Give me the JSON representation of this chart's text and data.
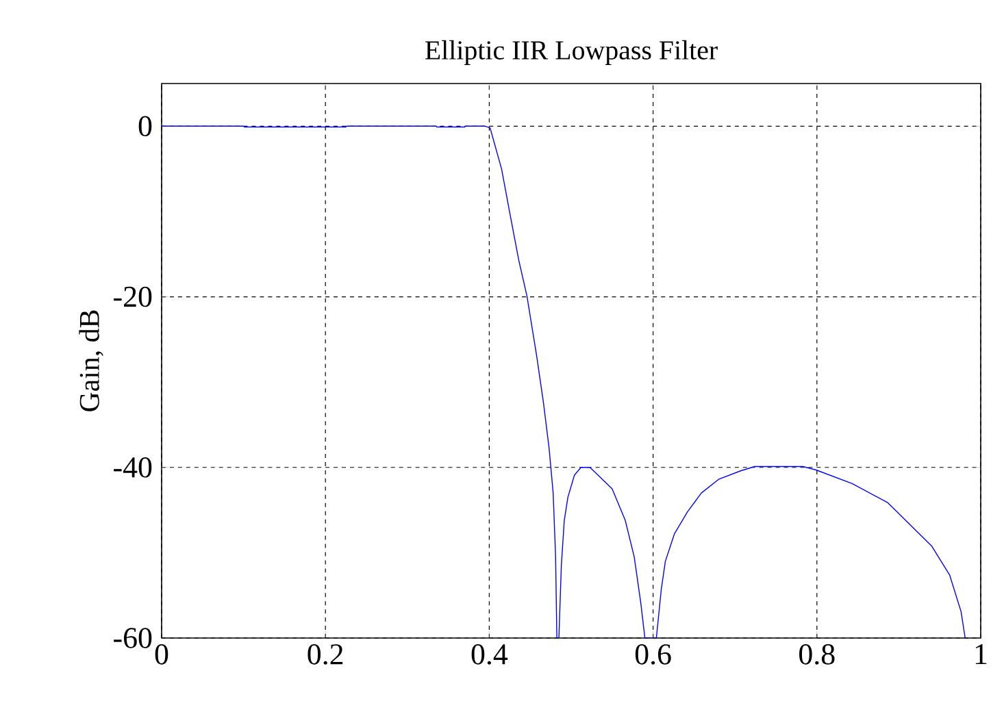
{
  "chart_data": {
    "type": "line",
    "title": "Elliptic IIR Lowpass Filter",
    "ylabel": "Gain, dB",
    "x": [
      0,
      0.1,
      0.101,
      0.225,
      0.226,
      0.335,
      0.336,
      0.37,
      0.371,
      0.395,
      0.401,
      0.415,
      0.4255,
      0.436,
      0.446,
      0.458,
      0.466,
      0.473,
      0.478,
      0.481,
      0.4825,
      0.485,
      0.488,
      0.4916,
      0.496,
      0.504,
      0.512,
      0.523,
      0.55,
      0.566,
      0.577,
      0.585,
      0.59,
      0.604,
      0.61,
      0.615,
      0.626,
      0.642,
      0.659,
      0.68,
      0.707,
      0.724,
      0.783,
      0.799,
      0.843,
      0.886,
      0.94,
      0.962,
      0.976,
      0.981
    ],
    "series": [
      {
        "color": "#0000ff",
        "values": [
          0,
          0,
          -0.1,
          -0.1,
          0,
          0,
          -0.1,
          -0.1,
          0,
          0,
          -0.2,
          -5,
          -10.4,
          -15.7,
          -19.9,
          -27,
          -32.3,
          -37.7,
          -43,
          -50.5,
          -60,
          -60,
          -51.5,
          -46.2,
          -43.5,
          -40.9,
          -40,
          -40,
          -42.5,
          -46.2,
          -50.5,
          -55.9,
          -60,
          -60,
          -54.3,
          -51,
          -47.8,
          -45.2,
          -43,
          -41.4,
          -40.4,
          -39.9,
          -39.9,
          -40.3,
          -41.9,
          -44.1,
          -49.2,
          -52.6,
          -56.9,
          -60
        ]
      }
    ],
    "xlim": [
      0,
      1
    ],
    "ylim": [
      -60,
      5
    ],
    "xticks": [
      0,
      0.2,
      0.4,
      0.6,
      0.8,
      1
    ],
    "yticks": [
      -60,
      -40,
      -20,
      0
    ],
    "grid": true,
    "line_style": "solid",
    "marker": "none"
  }
}
